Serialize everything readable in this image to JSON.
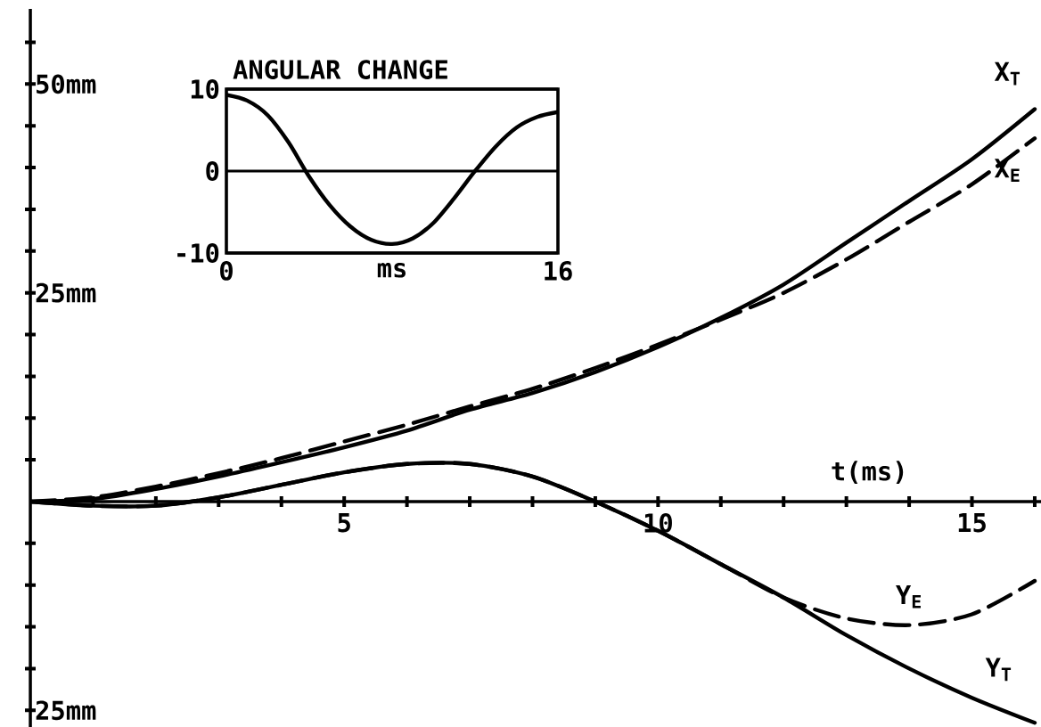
{
  "chart_data": [
    {
      "type": "line",
      "xlabel": "t(ms)",
      "xlim": [
        0,
        16.1
      ],
      "ylim": [
        -27,
        59
      ],
      "xticks": [
        {
          "value": 1,
          "label": null
        },
        {
          "value": 2,
          "label": null
        },
        {
          "value": 3,
          "label": null
        },
        {
          "value": 4,
          "label": null
        },
        5,
        {
          "value": 6,
          "label": null
        },
        {
          "value": 7,
          "label": null
        },
        {
          "value": 8,
          "label": null
        },
        {
          "value": 9,
          "label": null
        },
        10,
        {
          "value": 11,
          "label": null
        },
        {
          "value": 12,
          "label": null
        },
        {
          "value": 13,
          "label": null
        },
        {
          "value": 14,
          "label": null
        },
        15,
        {
          "value": 16,
          "label": null
        }
      ],
      "yticks": [
        {
          "value": -25,
          "label": "25mm"
        },
        {
          "value": -20,
          "label": null
        },
        {
          "value": -15,
          "label": null
        },
        {
          "value": -10,
          "label": null
        },
        {
          "value": -5,
          "label": null
        },
        {
          "value": 5,
          "label": null
        },
        {
          "value": 10,
          "label": null
        },
        {
          "value": 15,
          "label": null
        },
        {
          "value": 20,
          "label": null
        },
        {
          "value": 25,
          "label": "25mm"
        },
        {
          "value": 30,
          "label": null
        },
        {
          "value": 35,
          "label": null
        },
        {
          "value": 40,
          "label": null
        },
        {
          "value": 45,
          "label": null
        },
        {
          "value": 50,
          "label": "50mm"
        },
        {
          "value": 55,
          "label": null
        }
      ],
      "x": [
        0,
        1,
        2,
        3,
        4,
        5,
        6,
        7,
        8,
        9,
        10,
        11,
        12,
        13,
        14,
        15,
        16
      ],
      "series": [
        {
          "name": "X$_{T}$",
          "color": "#000000",
          "line_style": "solid",
          "values": [
            0,
            0.3,
            1.5,
            3,
            4.7,
            6.5,
            8.5,
            11,
            13,
            15.5,
            18.5,
            22,
            26,
            31,
            36,
            41,
            47
          ]
        },
        {
          "name": "X$_{E}$",
          "color": "#000000",
          "line_style": "dashed",
          "values": [
            0,
            0.5,
            1.8,
            3.4,
            5.2,
            7.2,
            9.2,
            11.4,
            13.5,
            16,
            18.8,
            21.8,
            25,
            29,
            33.5,
            38,
            43.5
          ]
        },
        {
          "name": "Y$_{T}$",
          "color": "#000000",
          "line_style": "solid",
          "values": [
            0,
            -0.5,
            -0.5,
            0.5,
            2,
            3.5,
            4.5,
            4.5,
            3,
            0,
            -3.5,
            -7.5,
            -11.5,
            -16,
            -20,
            -23.5,
            -26.5
          ]
        },
        {
          "name": "Y$_{E}$",
          "color": "#000000",
          "line_style": "dashed",
          "values": [
            0,
            -0.5,
            -0.5,
            0.5,
            2,
            3.5,
            4.5,
            4.5,
            3,
            0,
            -3.5,
            -7.5,
            -11.5,
            -14,
            -14.8,
            -13.5,
            -9.5
          ]
        }
      ]
    },
    {
      "type": "line",
      "title": "ANGULAR CHANGE",
      "xlabel": "ms",
      "xlim": [
        0,
        16
      ],
      "ylim": [
        -10,
        10
      ],
      "xticks": [
        0,
        16
      ],
      "yticks": [
        -10,
        0,
        10
      ],
      "grid": "y",
      "x": [
        0,
        1,
        2,
        3,
        4,
        5,
        6,
        7,
        8,
        9,
        10,
        11,
        12,
        13,
        14,
        15,
        16
      ],
      "series": [
        {
          "color": "#000000",
          "line_style": "solid",
          "values": [
            9.3,
            8.6,
            6.8,
            3.5,
            -0.7,
            -4.2,
            -6.8,
            -8.4,
            -8.9,
            -8.2,
            -6.3,
            -3.3,
            0,
            3,
            5.3,
            6.6,
            7.2
          ]
        }
      ]
    }
  ]
}
